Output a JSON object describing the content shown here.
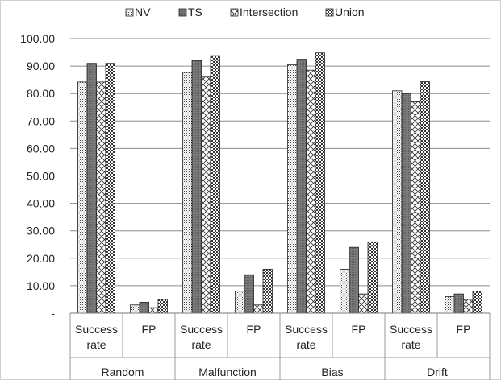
{
  "chart_data": {
    "type": "bar",
    "title": "",
    "xlabel": "",
    "ylabel": "",
    "ylim": [
      0,
      100
    ],
    "yticks": [
      "-",
      "10.00",
      "20.00",
      "30.00",
      "40.00",
      "50.00",
      "60.00",
      "70.00",
      "80.00",
      "90.00",
      "100.00"
    ],
    "grid": true,
    "legend_position": "top",
    "groups": [
      "Random",
      "Malfunction",
      "Bias",
      "Drift"
    ],
    "categories": [
      [
        "Success",
        "rate"
      ],
      [
        "FP"
      ],
      [
        "Success",
        "rate"
      ],
      [
        "FP"
      ],
      [
        "Success",
        "rate"
      ],
      [
        "FP"
      ],
      [
        "Success",
        "rate"
      ],
      [
        "FP"
      ]
    ],
    "series": [
      {
        "name": "NV",
        "pattern": "dots",
        "values": [
          84.2,
          3.0,
          87.7,
          8.0,
          90.5,
          16.0,
          81.0,
          6.0
        ]
      },
      {
        "name": "TS",
        "pattern": "solid-dark",
        "values": [
          91.0,
          4.0,
          92.0,
          14.0,
          92.5,
          24.0,
          80.0,
          7.0
        ]
      },
      {
        "name": "Intersection",
        "pattern": "crosshatch",
        "values": [
          84.2,
          2.0,
          86.0,
          3.0,
          88.5,
          7.0,
          77.0,
          5.0
        ]
      },
      {
        "name": "Union",
        "pattern": "checker",
        "values": [
          91.0,
          5.0,
          93.8,
          16.0,
          94.8,
          26.0,
          84.3,
          8.0
        ]
      }
    ],
    "colors": {
      "bar_stroke": "#222222",
      "grid": "#8c8c8c",
      "solid_fill": "#7a7a7a"
    }
  }
}
